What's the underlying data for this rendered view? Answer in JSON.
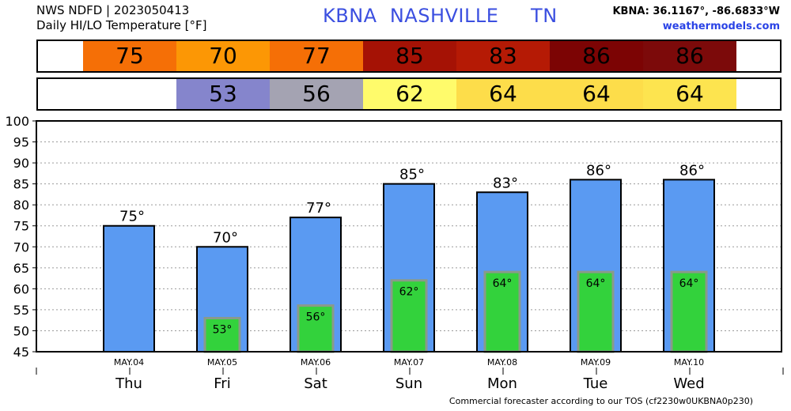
{
  "header": {
    "line1": "NWS NDFD | 2023050413",
    "line2": "Daily HI/LO Temperature [°F]",
    "station_title": "KBNA  NASHVILLE     TN",
    "coords": "KBNA: 36.1167°, -86.6833°W",
    "site": "weathermodels.com"
  },
  "footer": "Commercial forecaster according to our TOS (cf2230w0UKBNA0p230)",
  "strips": {
    "hi_cells": [
      {
        "text": "75",
        "color": "#f56f06"
      },
      {
        "text": "70",
        "color": "#fc9705"
      },
      {
        "text": "77",
        "color": "#f56f06"
      },
      {
        "text": "85",
        "color": "#a51205"
      },
      {
        "text": "83",
        "color": "#b51a05"
      },
      {
        "text": "86",
        "color": "#7c0404"
      },
      {
        "text": "86",
        "color": "#7c0a0a"
      }
    ],
    "lo_cells": [
      {
        "text": "",
        "color": "#ffffff"
      },
      {
        "text": "53",
        "color": "#8585cc"
      },
      {
        "text": "56",
        "color": "#a4a3b2"
      },
      {
        "text": "62",
        "color": "#fffb6b"
      },
      {
        "text": "64",
        "color": "#fddd4a"
      },
      {
        "text": "64",
        "color": "#fddd4a"
      },
      {
        "text": "64",
        "color": "#fde44f"
      }
    ]
  },
  "colors": {
    "hi_bar": "#5a9af2",
    "lo_bar": "#33d23c",
    "lo_border": "#8a9a8a"
  },
  "chart_data": {
    "type": "bar",
    "ylim": [
      45,
      100
    ],
    "yticks": [
      45,
      50,
      55,
      60,
      65,
      70,
      75,
      80,
      85,
      90,
      95,
      100
    ],
    "grid": true,
    "categories": [
      "Thu",
      "Fri",
      "Sat",
      "Sun",
      "Mon",
      "Tue",
      "Wed"
    ],
    "dates": [
      "MAY.04",
      "MAY.05",
      "MAY.06",
      "MAY.07",
      "MAY.08",
      "MAY.09",
      "MAY.10"
    ],
    "series": [
      {
        "values": [
          75,
          70,
          77,
          85,
          83,
          86,
          86
        ],
        "labels": [
          "75°",
          "70°",
          "77°",
          "85°",
          "83°",
          "86°",
          "86°"
        ]
      },
      {
        "values": [
          null,
          53,
          56,
          62,
          64,
          64,
          64
        ],
        "labels": [
          "",
          "53°",
          "56°",
          "62°",
          "64°",
          "64°",
          "64°"
        ]
      }
    ]
  }
}
